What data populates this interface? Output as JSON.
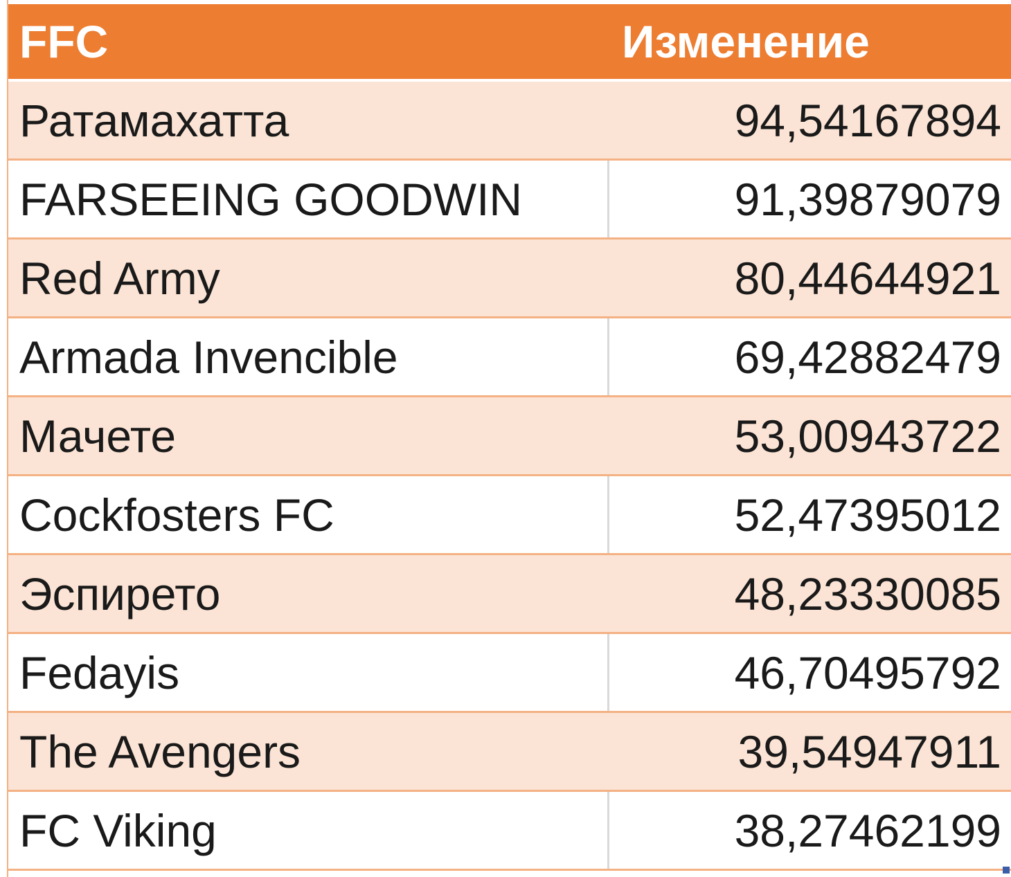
{
  "table": {
    "headers": [
      "FFC",
      "Изменение"
    ],
    "rows": [
      {
        "team": "Ратамахатта",
        "change": "94,54167894"
      },
      {
        "team": "FARSEEING GOODWIN",
        "change": "91,39879079"
      },
      {
        "team": "Red Army",
        "change": "80,44644921"
      },
      {
        "team": "Armada Invencible",
        "change": "69,42882479"
      },
      {
        "team": "Мачете",
        "change": "53,00943722"
      },
      {
        "team": "Cockfosters FC",
        "change": "52,47395012"
      },
      {
        "team": "Эспирето",
        "change": "48,23330085"
      },
      {
        "team": "Fedayis",
        "change": "46,70495792"
      },
      {
        "team": "The Avengers",
        "change": "39,54947911"
      },
      {
        "team": "FC Viking",
        "change": "38,27462199"
      }
    ]
  },
  "colors": {
    "header_bg": "#ed7d31",
    "band_bg": "#fbe4d5",
    "border": "#f4b183",
    "selection_handle": "#3b5ea8"
  }
}
